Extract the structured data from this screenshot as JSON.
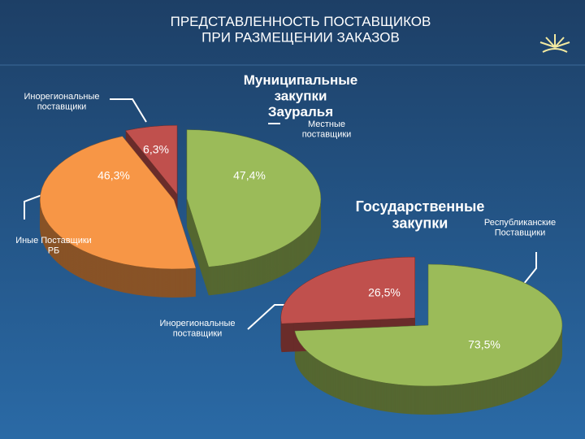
{
  "title": "ПРЕДСТАВЛЕННОСТЬ ПОСТАВЩИКОВ ПРИ РАЗМЕЩЕНИИ ЗАКАЗОВ",
  "chart_data": [
    {
      "type": "pie",
      "title": "Муниципальные закупки Зауралья",
      "categories": [
        "Местные поставщики",
        "Иные Поставщики РБ",
        "Инорегиональные поставщики"
      ],
      "values": [
        47.4,
        46.3,
        6.3
      ],
      "value_labels": [
        "47,4%",
        "46,3%",
        "6,3%"
      ],
      "colors": [
        "#9bbb59",
        "#f79646",
        "#c0504d"
      ]
    },
    {
      "type": "pie",
      "title": "Государственные закупки",
      "categories": [
        "Республиканские Поставщики",
        "Инорегиональные поставщики"
      ],
      "values": [
        73.5,
        26.5
      ],
      "value_labels": [
        "73,5%",
        "26,5%"
      ],
      "colors": [
        "#9bbb59",
        "#c0504d"
      ]
    }
  ]
}
